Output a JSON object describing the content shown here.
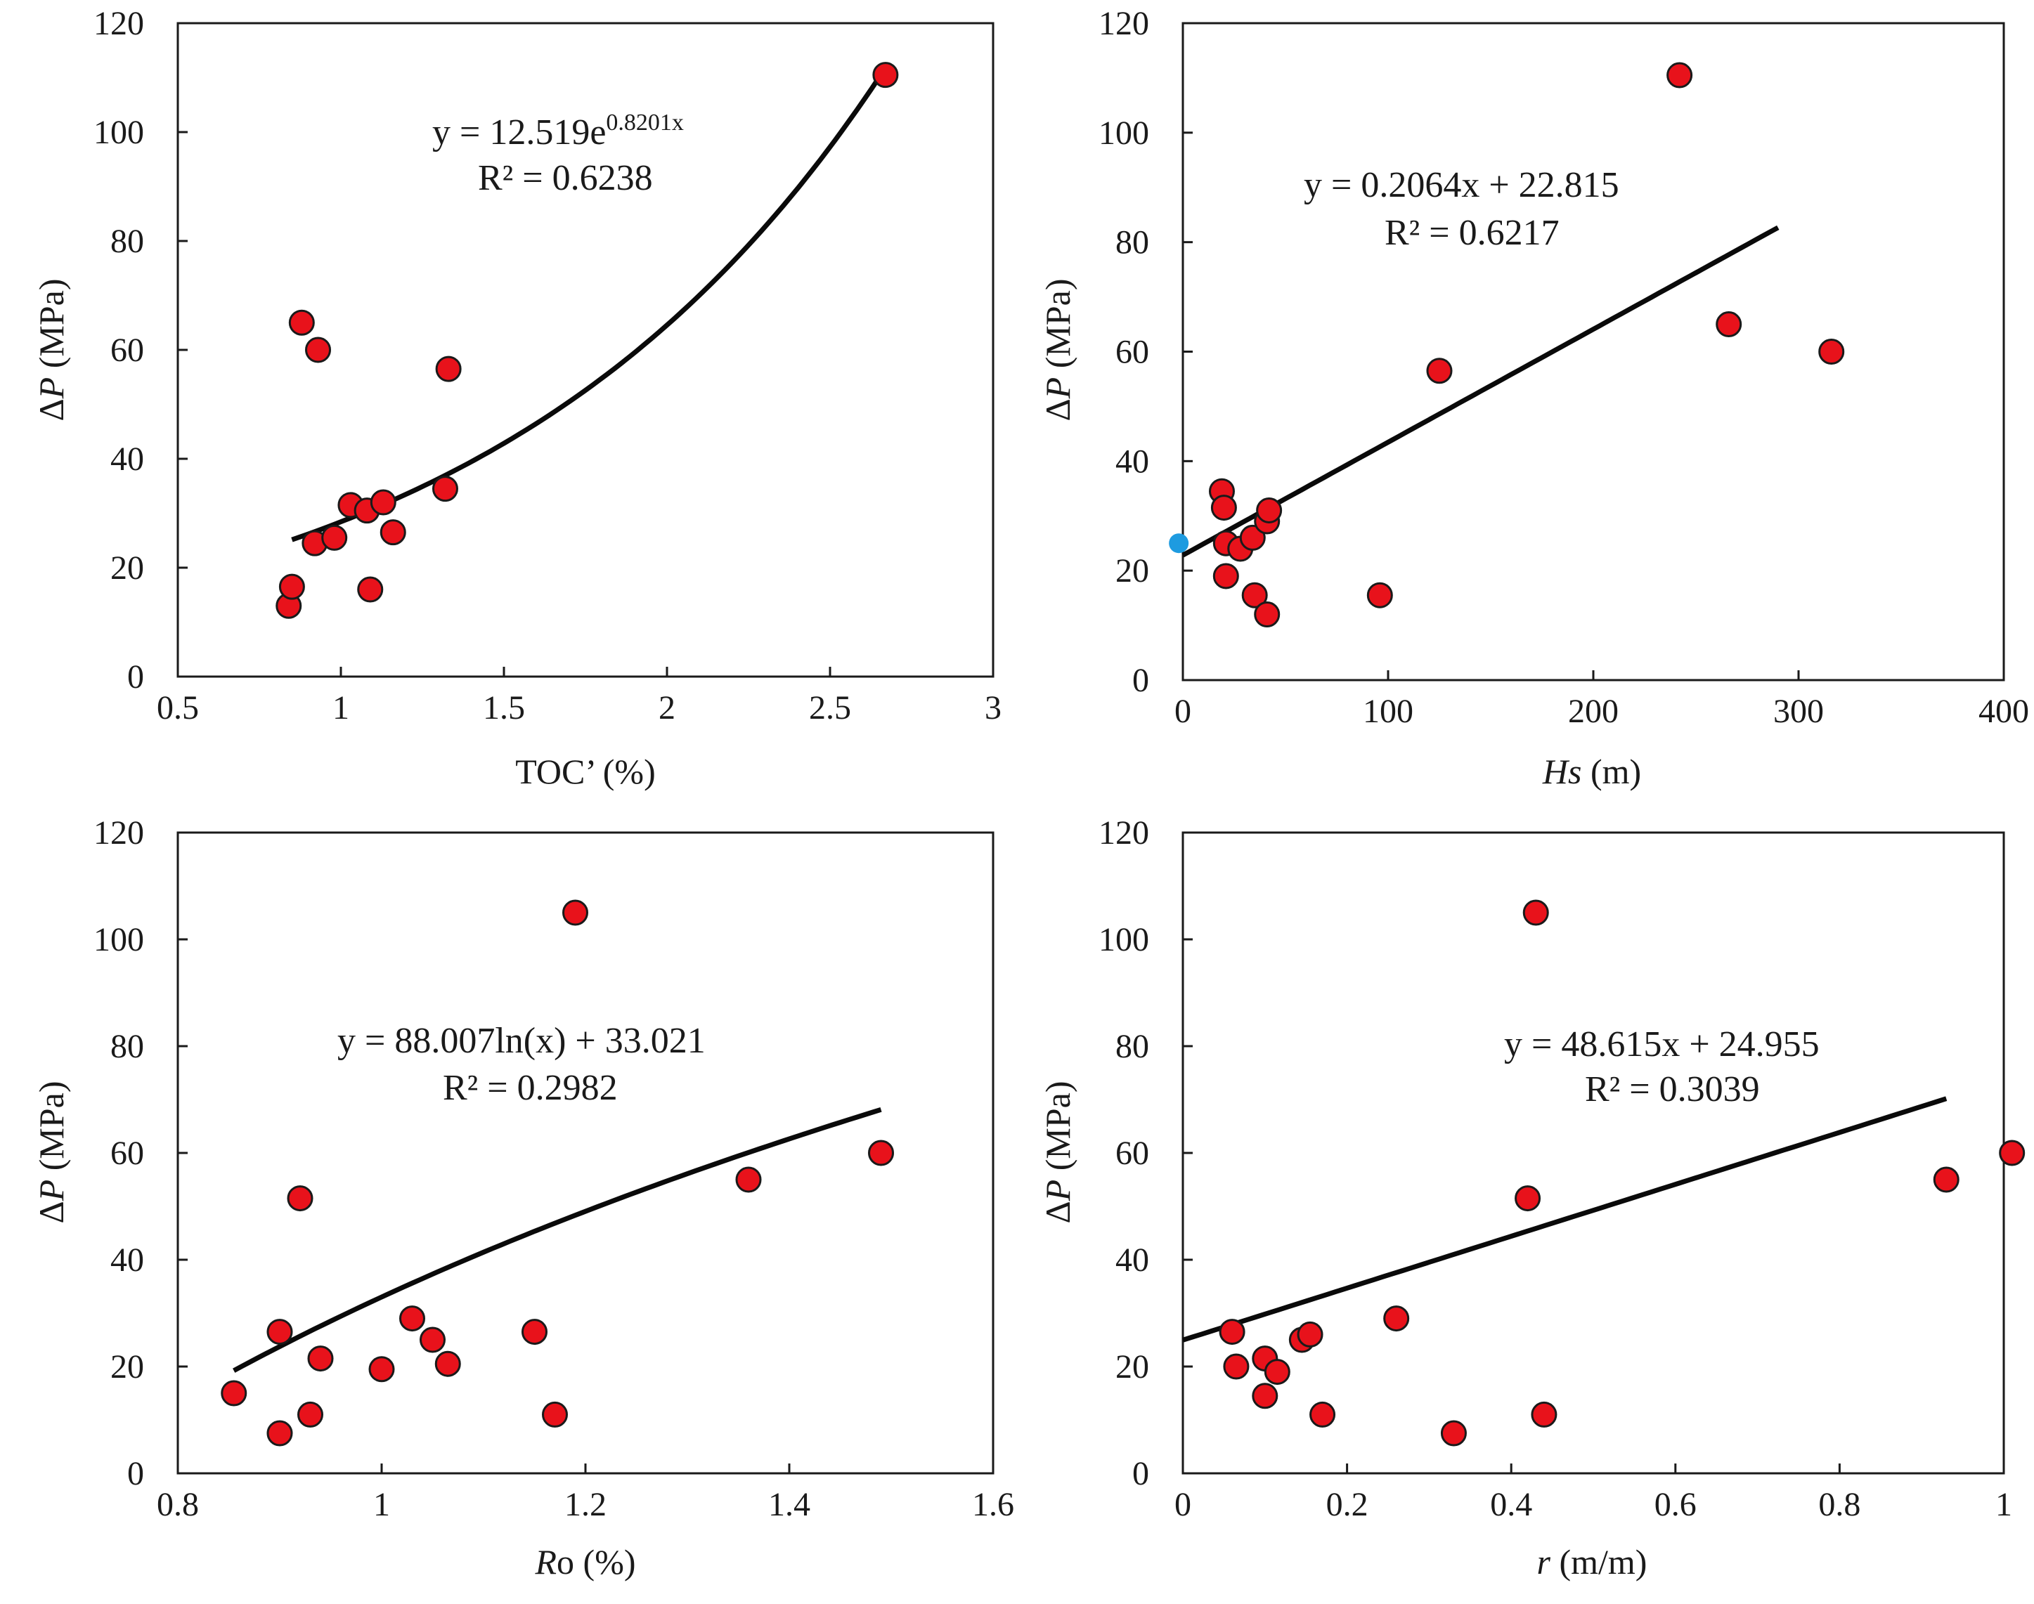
{
  "colors": {
    "point_fill": "#e8121b",
    "point_stroke": "#1a1a1a",
    "fit_line": "#0a0a0a",
    "highlight_point": "#1e9be0",
    "axes": "#1a1a1a"
  },
  "chart_data": [
    {
      "id": "toc",
      "type": "scatter",
      "xlabel_main": "TOC’ (%)",
      "xlabel_italic": "",
      "xlabel_suffix": "",
      "ylabel_prefix": "Δ",
      "ylabel_italic": "P",
      "ylabel_suffix": " (MPa)",
      "xlim": [
        0.5,
        3
      ],
      "ylim": [
        0,
        120
      ],
      "xticks": [
        0.5,
        1,
        1.5,
        2,
        2.5,
        3
      ],
      "xtick_labels": [
        "0.5",
        "1",
        "1.5",
        "2",
        "2.5",
        "3"
      ],
      "yticks": [
        0,
        20,
        40,
        60,
        80,
        100,
        120
      ],
      "ytick_labels": [
        "0",
        "20",
        "40",
        "60",
        "80",
        "100",
        "120"
      ],
      "equation": "y = 12.519e",
      "equation_exp": "0.8201x",
      "r2": "R² = 0.6238",
      "fit": {
        "kind": "exp",
        "a": 12.519,
        "b": 0.8201,
        "x_range": [
          0.85,
          2.65
        ]
      },
      "points": [
        [
          0.84,
          13
        ],
        [
          0.85,
          16.5
        ],
        [
          0.88,
          65
        ],
        [
          0.92,
          24.5
        ],
        [
          0.93,
          60
        ],
        [
          0.98,
          25.5
        ],
        [
          1.03,
          31.5
        ],
        [
          1.08,
          30.5
        ],
        [
          1.09,
          16
        ],
        [
          1.13,
          32
        ],
        [
          1.16,
          26.5
        ],
        [
          1.32,
          34.5
        ],
        [
          1.33,
          56.5
        ],
        [
          2.67,
          110.5
        ]
      ],
      "highlight_points": []
    },
    {
      "id": "hs",
      "type": "scatter",
      "xlabel_main": "",
      "xlabel_italic": "Hs",
      "xlabel_suffix": " (m)",
      "ylabel_prefix": "Δ",
      "ylabel_italic": "P",
      "ylabel_suffix": " (MPa)",
      "xlim": [
        0,
        400
      ],
      "ylim": [
        0,
        120
      ],
      "xticks": [
        0,
        100,
        200,
        300,
        400
      ],
      "xtick_labels": [
        "0",
        "100",
        "200",
        "300",
        "400"
      ],
      "yticks": [
        0,
        20,
        40,
        60,
        80,
        100,
        120
      ],
      "ytick_labels": [
        "0",
        "20",
        "40",
        "60",
        "80",
        "100",
        "120"
      ],
      "equation": "y = 0.2064x + 22.815",
      "equation_exp": "",
      "r2": "R² = 0.6217",
      "fit": {
        "kind": "linear",
        "a": 0.2064,
        "b": 22.815,
        "x_range": [
          0,
          290
        ]
      },
      "points": [
        [
          19,
          34.5
        ],
        [
          20,
          31.5
        ],
        [
          21,
          25
        ],
        [
          21,
          19
        ],
        [
          28,
          24
        ],
        [
          34,
          26
        ],
        [
          35,
          15.5
        ],
        [
          41,
          12
        ],
        [
          41,
          29
        ],
        [
          42,
          31
        ],
        [
          96,
          15.5
        ],
        [
          125,
          56.5
        ],
        [
          242,
          110.5
        ],
        [
          266,
          65
        ],
        [
          316,
          60
        ]
      ],
      "highlight_points": [
        [
          -2,
          25
        ]
      ]
    },
    {
      "id": "ro",
      "type": "scatter",
      "xlabel_main": "o (%)",
      "xlabel_italic": "R",
      "xlabel_suffix": "",
      "ylabel_prefix": "Δ",
      "ylabel_italic": "P",
      "ylabel_suffix": " (MPa)",
      "xlim": [
        0.8,
        1.6
      ],
      "ylim": [
        0,
        120
      ],
      "xticks": [
        0.8,
        1.0,
        1.2,
        1.4,
        1.6
      ],
      "xtick_labels": [
        "0.8",
        "1",
        "1.2",
        "1.4",
        "1.6"
      ],
      "yticks": [
        0,
        20,
        40,
        60,
        80,
        100,
        120
      ],
      "ytick_labels": [
        "0",
        "20",
        "40",
        "60",
        "80",
        "100",
        "120"
      ],
      "equation": "y = 88.007ln(x) + 33.021",
      "equation_exp": "",
      "r2": "R² = 0.2982",
      "fit": {
        "kind": "log",
        "a": 88.007,
        "b": 33.021,
        "x_range": [
          0.855,
          1.49
        ]
      },
      "points": [
        [
          0.855,
          15
        ],
        [
          0.9,
          26.5
        ],
        [
          0.9,
          7.5
        ],
        [
          0.92,
          51.5
        ],
        [
          0.93,
          11
        ],
        [
          0.94,
          21.5
        ],
        [
          1.0,
          19.5
        ],
        [
          1.03,
          29
        ],
        [
          1.05,
          25
        ],
        [
          1.065,
          20.5
        ],
        [
          1.15,
          26.5
        ],
        [
          1.17,
          11
        ],
        [
          1.19,
          105
        ],
        [
          1.36,
          55
        ],
        [
          1.49,
          60
        ]
      ],
      "highlight_points": []
    },
    {
      "id": "r",
      "type": "scatter",
      "xlabel_main": "",
      "xlabel_italic": "r",
      "xlabel_suffix": " (m/m)",
      "ylabel_prefix": "Δ",
      "ylabel_italic": "P",
      "ylabel_suffix": " (MPa)",
      "xlim": [
        0,
        1
      ],
      "ylim": [
        0,
        120
      ],
      "xticks": [
        0,
        0.2,
        0.4,
        0.6,
        0.8,
        1
      ],
      "xtick_labels": [
        "0",
        "0.2",
        "0.4",
        "0.6",
        "0.8",
        "1"
      ],
      "yticks": [
        0,
        20,
        40,
        60,
        80,
        100,
        120
      ],
      "ytick_labels": [
        "0",
        "20",
        "40",
        "60",
        "80",
        "100",
        "120"
      ],
      "equation": "y = 48.615x + 24.955",
      "equation_exp": "",
      "r2": "R² = 0.3039",
      "fit": {
        "kind": "linear",
        "a": 48.615,
        "b": 24.955,
        "x_range": [
          0,
          0.93
        ]
      },
      "points": [
        [
          0.06,
          26.5
        ],
        [
          0.065,
          20
        ],
        [
          0.1,
          21.5
        ],
        [
          0.1,
          14.5
        ],
        [
          0.115,
          19
        ],
        [
          0.145,
          25
        ],
        [
          0.155,
          26
        ],
        [
          0.17,
          11
        ],
        [
          0.26,
          29
        ],
        [
          0.33,
          7.5
        ],
        [
          0.42,
          51.5
        ],
        [
          0.43,
          105
        ],
        [
          0.44,
          11
        ],
        [
          0.93,
          55
        ],
        [
          1.01,
          60
        ]
      ],
      "highlight_points": []
    }
  ]
}
